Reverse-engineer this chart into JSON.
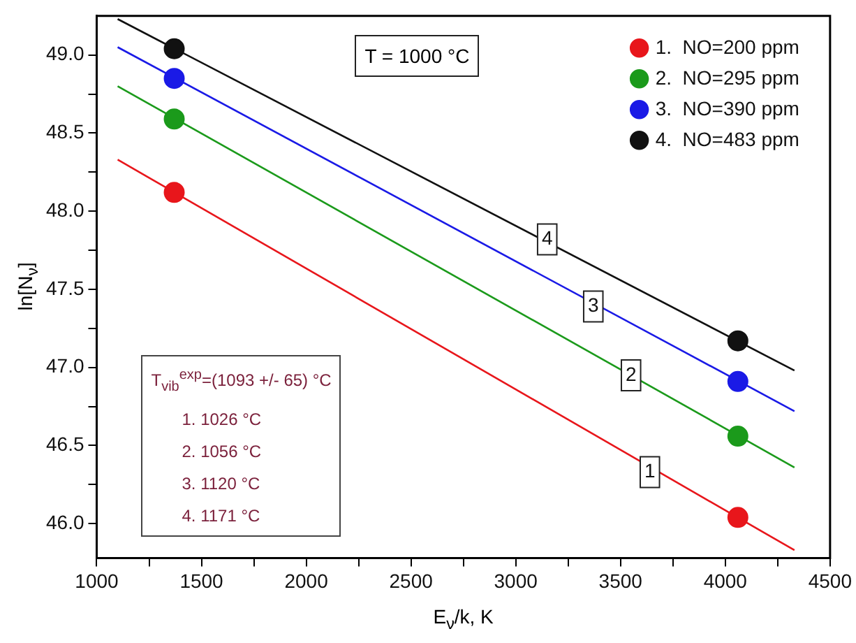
{
  "chart_data": {
    "type": "scatter",
    "xlabel": "E$_{ν}$/k, K",
    "ylabel": "ln[N$_{ν}$]",
    "annotations": [
      "T = 1000 °C",
      "T$_{vib}$$^{exp}$=(1093 +/- 65) °C",
      "1. 1026 °C",
      "2. 1056 °C",
      "3.  1120 °C",
      "4.  1171 °C",
      {
        "text": "1",
        "x": 3640,
        "y": 46.33
      },
      {
        "text": "2",
        "x": 3550,
        "y": 46.95
      },
      {
        "text": "3",
        "x": 3370,
        "y": 47.39
      },
      {
        "text": "4",
        "x": 3150,
        "y": 47.82
      }
    ],
    "xlim": [
      1000,
      4500
    ],
    "xticks": [
      1000,
      {
        "value": 1250,
        "label": null
      },
      1500,
      {
        "value": 1750,
        "label": null
      },
      2000,
      {
        "value": 2250,
        "label": null
      },
      2500,
      {
        "value": 2750,
        "label": null
      },
      3000,
      {
        "value": 3250,
        "label": null
      },
      3500,
      {
        "value": 3750,
        "label": null
      },
      4000,
      {
        "value": 4250,
        "label": null
      },
      4500
    ],
    "ylim": [
      45.78,
      49.25
    ],
    "yticks": [
      {
        "value": 46,
        "label": "46.0"
      },
      {
        "value": 46.25,
        "label": null
      },
      46.5,
      {
        "value": 46.75,
        "label": null
      },
      {
        "value": 47,
        "label": "47.0"
      },
      {
        "value": 47.25,
        "label": null
      },
      47.5,
      {
        "value": 47.75,
        "label": null
      },
      {
        "value": 48,
        "label": "48.0"
      },
      {
        "value": 48.25,
        "label": null
      },
      48.5,
      {
        "value": 48.75,
        "label": null
      },
      {
        "value": 49,
        "label": "49.0"
      }
    ],
    "grid": false,
    "legend": "top right",
    "marker": "circle",
    "series": [
      {
        "name": "1.  NO=200 ppm",
        "color": "#e8161b",
        "x": [
          1370,
          4060
        ],
        "values": [
          48.12,
          46.04
        ]
      },
      {
        "name": "2.  NO=295 ppm",
        "color": "#1b9a1b",
        "x": [
          1370,
          4060
        ],
        "values": [
          48.59,
          46.56
        ]
      },
      {
        "name": "3.  NO=390 ppm",
        "color": "#1a1ae6",
        "x": [
          1370,
          4060
        ],
        "values": [
          48.85,
          46.91
        ]
      },
      {
        "name": "4.  NO=483 ppm",
        "color": "#111111",
        "x": [
          1370,
          4060
        ],
        "values": [
          49.04,
          47.17
        ]
      },
      {
        "type": "line",
        "color": "#e8161b",
        "x": [
          1100,
          4330
        ],
        "values": [
          48.33,
          45.83
        ],
        "marker": "none"
      },
      {
        "type": "line",
        "color": "#1b9a1b",
        "x": [
          1100,
          4330
        ],
        "values": [
          48.8,
          46.36
        ],
        "marker": "none"
      },
      {
        "type": "line",
        "color": "#1a1ae6",
        "x": [
          1100,
          4330
        ],
        "values": [
          49.05,
          46.72
        ],
        "marker": "none"
      },
      {
        "type": "line",
        "color": "#111111",
        "x": [
          1100,
          4330
        ],
        "values": [
          49.23,
          46.98
        ],
        "marker": "none"
      }
    ]
  }
}
